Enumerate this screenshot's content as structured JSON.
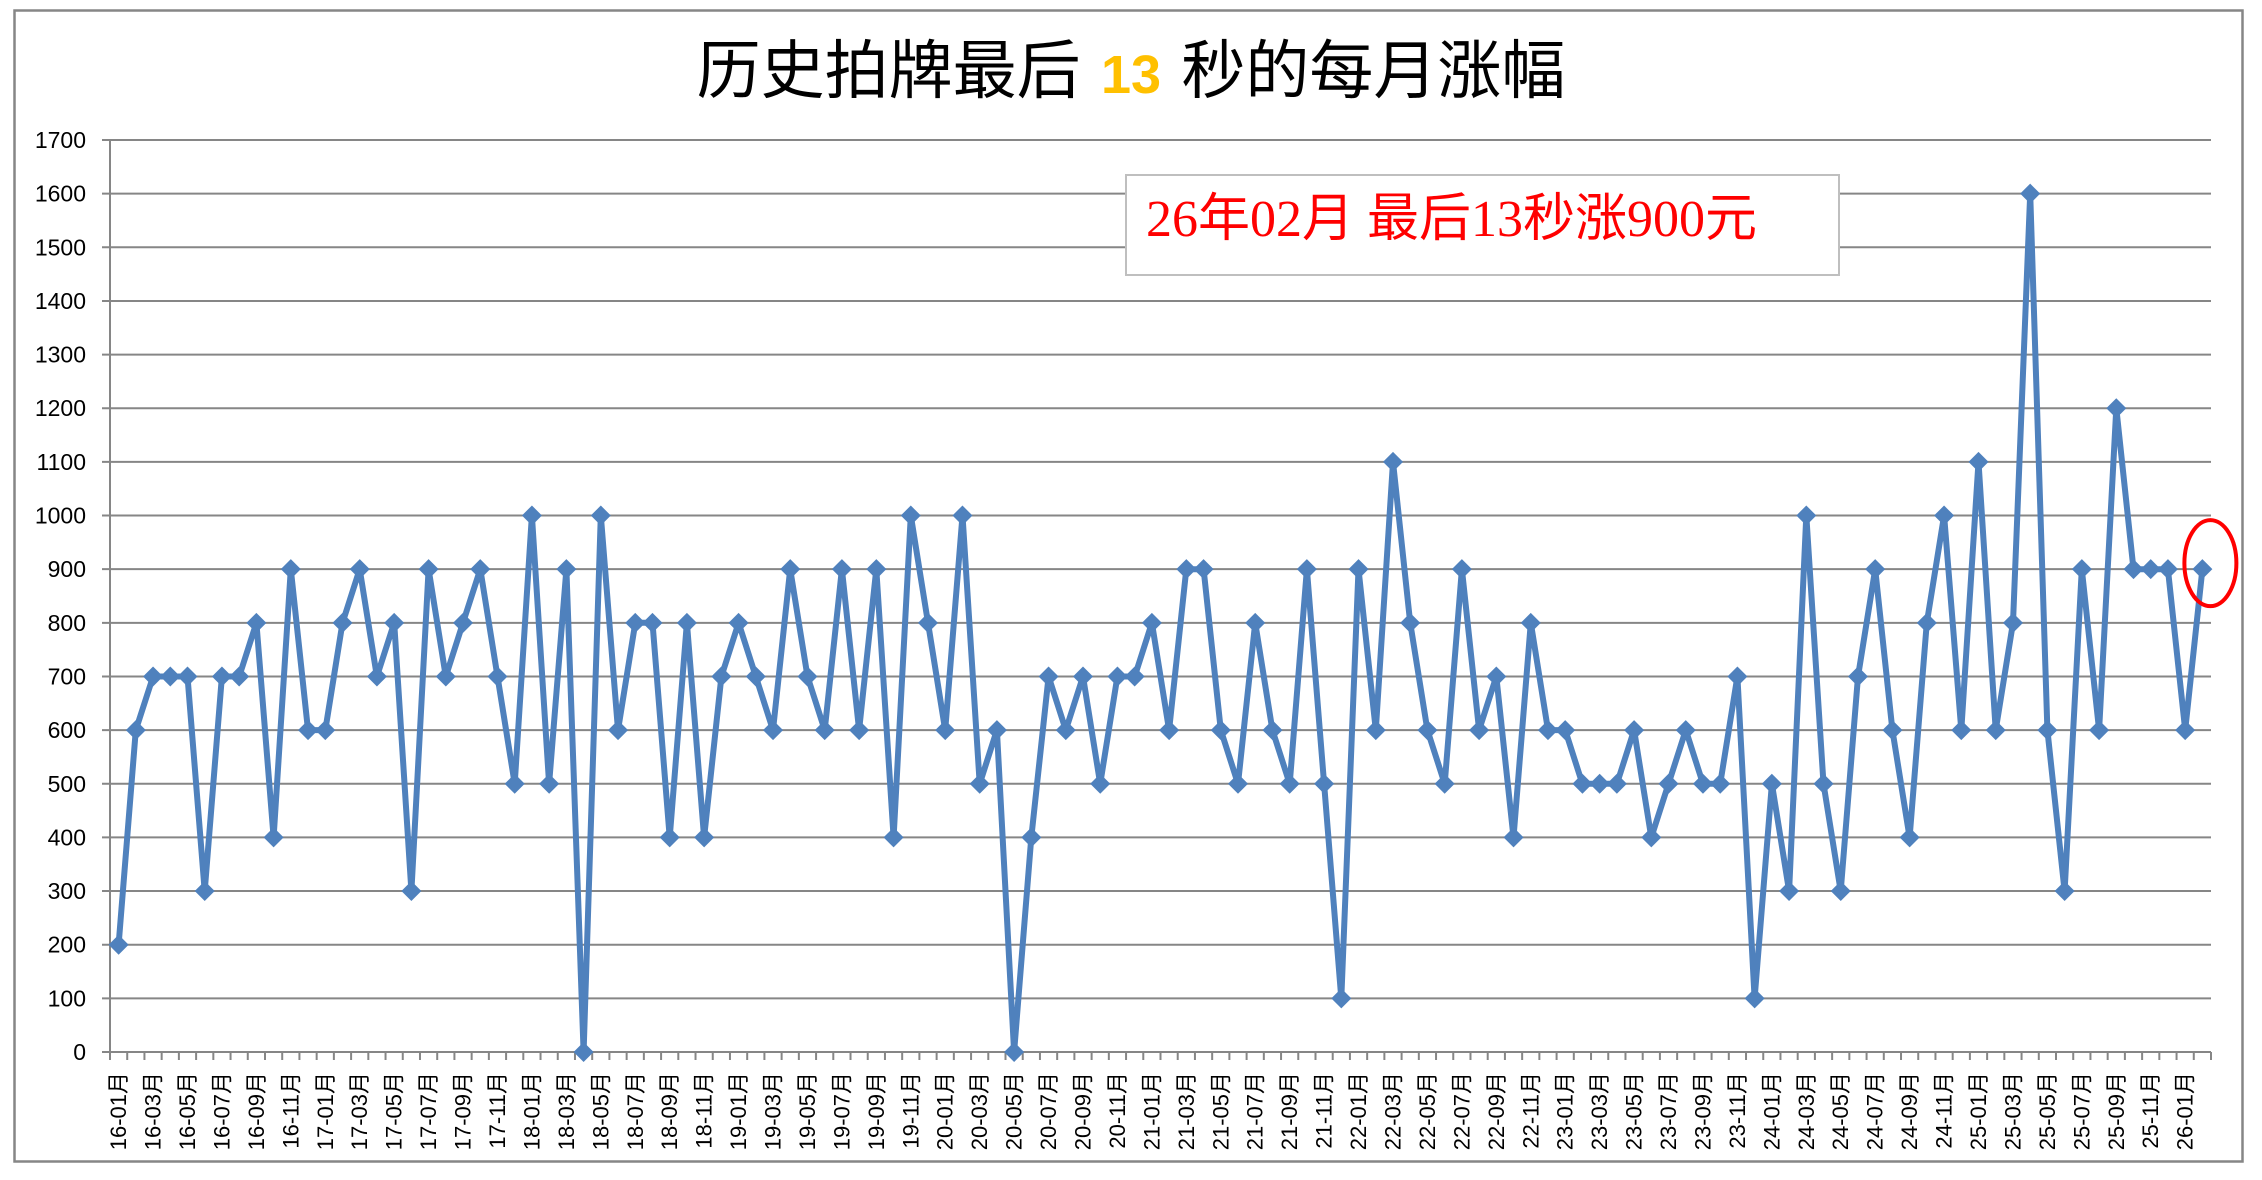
{
  "chart_data": {
    "type": "line",
    "title": "历史拍牌最后 13 秒的每月涨幅",
    "title_parts": [
      "历史拍牌最后 ",
      "13",
      " 秒的每月涨幅"
    ],
    "xlabel": "",
    "ylabel": "",
    "ylim": [
      0,
      1700
    ],
    "yticks": [
      0,
      100,
      200,
      300,
      400,
      500,
      600,
      700,
      800,
      900,
      1000,
      1100,
      1200,
      1300,
      1400,
      1500,
      1600,
      1700
    ],
    "grid": true,
    "legend": null,
    "marker": "diamond",
    "categories": [
      "16-01月",
      "16-02月",
      "16-03月",
      "16-04月",
      "16-05月",
      "16-06月",
      "16-07月",
      "16-08月",
      "16-09月",
      "16-10月",
      "16-11月",
      "16-12月",
      "17-01月",
      "17-02月",
      "17-03月",
      "17-04月",
      "17-05月",
      "17-06月",
      "17-07月",
      "17-08月",
      "17-09月",
      "17-10月",
      "17-11月",
      "17-12月",
      "18-01月",
      "18-02月",
      "18-03月",
      "18-04月",
      "18-05月",
      "18-06月",
      "18-07月",
      "18-08月",
      "18-09月",
      "18-10月",
      "18-11月",
      "18-12月",
      "19-01月",
      "19-02月",
      "19-03月",
      "19-04月",
      "19-05月",
      "19-06月",
      "19-07月",
      "19-08月",
      "19-09月",
      "19-10月",
      "19-11月",
      "19-12月",
      "20-01月",
      "20-02月",
      "20-03月",
      "20-04月",
      "20-05月",
      "20-06月",
      "20-07月",
      "20-08月",
      "20-09月",
      "20-10月",
      "20-11月",
      "20-12月",
      "21-01月",
      "21-02月",
      "21-03月",
      "21-04月",
      "21-05月",
      "21-06月",
      "21-07月",
      "21-08月",
      "21-09月",
      "21-10月",
      "21-11月",
      "21-12月",
      "22-01月",
      "22-02月",
      "22-03月",
      "22-04月",
      "22-05月",
      "22-06月",
      "22-07月",
      "22-08月",
      "22-09月",
      "22-10月",
      "22-11月",
      "22-12月",
      "23-01月",
      "23-02月",
      "23-03月",
      "23-04月",
      "23-05月",
      "23-06月",
      "23-07月",
      "23-08月",
      "23-09月",
      "23-10月",
      "23-11月",
      "23-12月",
      "24-01月",
      "24-02月",
      "24-03月",
      "24-04月",
      "24-05月",
      "24-06月",
      "24-07月",
      "24-08月",
      "24-09月",
      "24-10月",
      "24-11月",
      "24-12月",
      "25-01月",
      "25-02月",
      "25-03月",
      "25-04月",
      "25-05月",
      "25-06月",
      "25-07月",
      "25-08月",
      "25-09月",
      "25-10月",
      "25-11月",
      "25-12月",
      "26-01月",
      "26-02月"
    ],
    "x_tick_labels": [
      "16-01月",
      "16-03月",
      "16-05月",
      "16-07月",
      "16-09月",
      "16-11月",
      "17-01月",
      "17-03月",
      "17-05月",
      "17-07月",
      "17-09月",
      "17-11月",
      "18-01月",
      "18-03月",
      "18-05月",
      "18-07月",
      "18-09月",
      "18-11月",
      "19-01月",
      "19-03月",
      "19-05月",
      "19-07月",
      "19-09月",
      "19-11月",
      "20-01月",
      "20-03月",
      "20-05月",
      "20-07月",
      "20-09月",
      "20-11月",
      "21-01月",
      "21-03月",
      "21-05月",
      "21-07月",
      "21-09月",
      "21-11月",
      "22-01月",
      "22-03月",
      "22-05月",
      "22-07月",
      "22-09月",
      "22-11月",
      "23-01月",
      "23-03月",
      "23-05月",
      "23-07月",
      "23-09月",
      "23-11月",
      "24-01月",
      "24-03月",
      "24-05月",
      "24-07月",
      "24-09月",
      "24-11月",
      "25-01月",
      "25-03月",
      "25-05月",
      "25-07月",
      "25-09月",
      "25-11月",
      "26-01月"
    ],
    "values": [
      200,
      600,
      700,
      700,
      700,
      300,
      700,
      700,
      800,
      400,
      900,
      600,
      600,
      800,
      900,
      700,
      800,
      300,
      900,
      700,
      800,
      900,
      700,
      500,
      1000,
      500,
      900,
      0,
      1000,
      600,
      800,
      800,
      400,
      800,
      400,
      700,
      800,
      700,
      600,
      900,
      700,
      600,
      900,
      600,
      900,
      400,
      1000,
      800,
      600,
      1000,
      500,
      600,
      0,
      400,
      700,
      600,
      700,
      500,
      700,
      700,
      800,
      600,
      900,
      900,
      600,
      500,
      800,
      600,
      500,
      900,
      500,
      100,
      900,
      600,
      1100,
      800,
      600,
      500,
      900,
      600,
      700,
      400,
      800,
      600,
      600,
      500,
      500,
      500,
      600,
      400,
      500,
      600,
      500,
      500,
      700,
      100,
      500,
      300,
      1000,
      500,
      300,
      700,
      900,
      600,
      400,
      800,
      1000,
      600,
      1100,
      600,
      800,
      1600,
      600,
      300,
      900,
      600,
      1200,
      900,
      900,
      900,
      600,
      900
    ],
    "annotations": [
      {
        "type": "text-box",
        "text": "26年02月 最后13秒涨900元",
        "color": "#FF0000"
      },
      {
        "type": "ellipse",
        "category": "26-02月",
        "value": 900,
        "color": "#FF0000"
      }
    ]
  },
  "colors": {
    "line": "#4F81BD",
    "marker": "#4F81BD",
    "grid": "#868686",
    "axis": "#868686",
    "border": "#868686",
    "title": "#000000",
    "title_accent": "#FFC000",
    "annotation_text": "#FF0000",
    "annotation_border": "#BFBFBF",
    "highlight": "#FF0000"
  }
}
